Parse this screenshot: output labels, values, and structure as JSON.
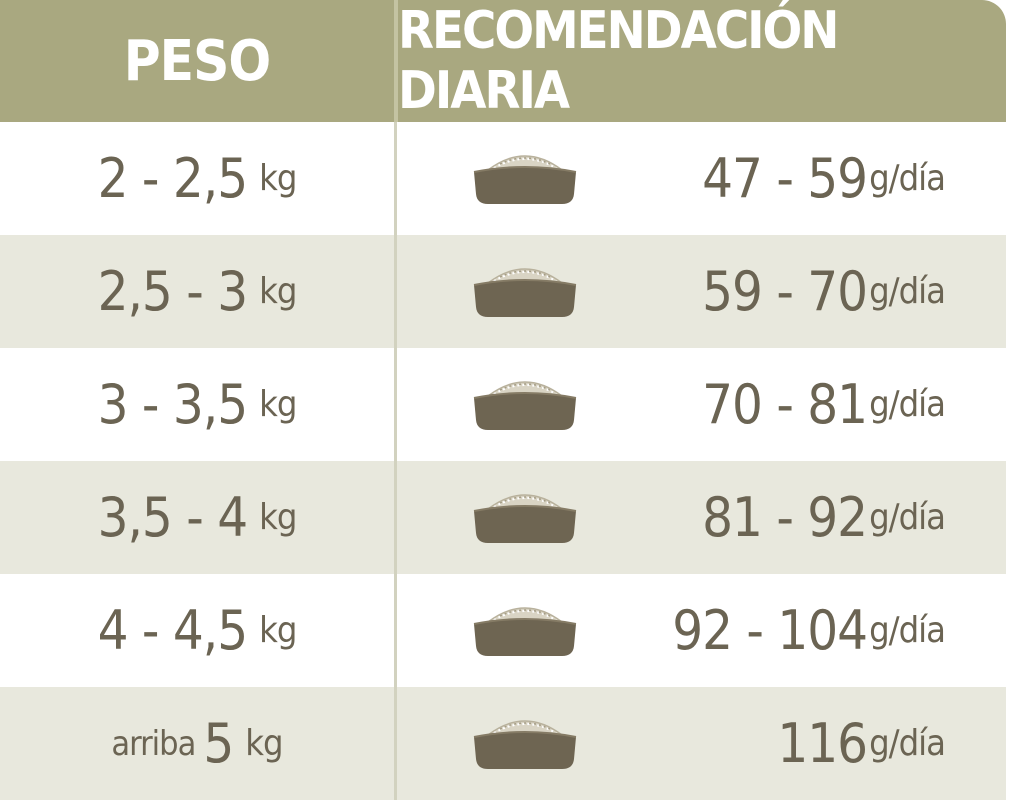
{
  "header": {
    "peso": "PESO",
    "recomendacion": "RECOMENDACIÓN DIARIA"
  },
  "rows": [
    {
      "prefix": "",
      "weight": "2 - 2,5",
      "weight_unit": "kg",
      "amount": "47 - 59",
      "amount_unit": "g/día"
    },
    {
      "prefix": "",
      "weight": "2,5 - 3",
      "weight_unit": "kg",
      "amount": "59 - 70",
      "amount_unit": "g/día"
    },
    {
      "prefix": "",
      "weight": "3 - 3,5",
      "weight_unit": "kg",
      "amount": "70 - 81",
      "amount_unit": "g/día"
    },
    {
      "prefix": "",
      "weight": "3,5 - 4",
      "weight_unit": "kg",
      "amount": "81 - 92",
      "amount_unit": "g/día"
    },
    {
      "prefix": "",
      "weight": "4 - 4,5",
      "weight_unit": "kg",
      "amount": "92 - 104",
      "amount_unit": "g/día"
    },
    {
      "prefix": "arriba",
      "weight": "5",
      "weight_unit": "kg",
      "amount": "116",
      "amount_unit": "g/día"
    }
  ],
  "icons": {
    "bowl": "food-bowl-icon"
  },
  "colors": {
    "header_bg": "#a9a880",
    "alt_row_bg": "#e8e8dd",
    "text": "#6b6453",
    "bowl_body": "#6e6552",
    "kibble": "#d9d4c4"
  }
}
